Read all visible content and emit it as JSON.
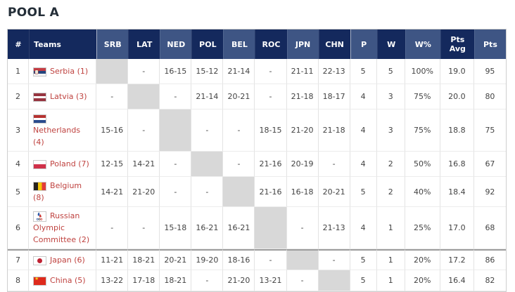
{
  "title": "POOL A",
  "colors": {
    "header_dark": "#14295d",
    "header_light": "#3e5584",
    "header_text": "#ffffff",
    "team_name_red": "#bf423f",
    "self_cell_gray": "#d8d8d8",
    "cutoff_separator": "#9c9c9c",
    "body_text": "#434343"
  },
  "table": {
    "columns": [
      {
        "key": "rank",
        "label": "#",
        "type": "rank",
        "shade": "dark"
      },
      {
        "key": "team",
        "label": "Teams",
        "type": "team",
        "shade": "dark"
      },
      {
        "key": "SRB",
        "label": "SRB",
        "type": "match",
        "shade": "light",
        "group_start": true
      },
      {
        "key": "LAT",
        "label": "LAT",
        "type": "match",
        "shade": "dark"
      },
      {
        "key": "NED",
        "label": "NED",
        "type": "match",
        "shade": "light"
      },
      {
        "key": "POL",
        "label": "POL",
        "type": "match",
        "shade": "dark"
      },
      {
        "key": "BEL",
        "label": "BEL",
        "type": "match",
        "shade": "light"
      },
      {
        "key": "ROC",
        "label": "ROC",
        "type": "match",
        "shade": "dark"
      },
      {
        "key": "JPN",
        "label": "JPN",
        "type": "match",
        "shade": "light"
      },
      {
        "key": "CHN",
        "label": "CHN",
        "type": "match",
        "shade": "dark"
      },
      {
        "key": "p",
        "label": "P",
        "type": "stat",
        "shade": "light",
        "group_start": true
      },
      {
        "key": "w",
        "label": "W",
        "type": "stat",
        "shade": "dark"
      },
      {
        "key": "w_pct",
        "label": "W%",
        "type": "stat",
        "shade": "light"
      },
      {
        "key": "pts_avg",
        "label": "Pts Avg",
        "type": "stat",
        "shade": "dark"
      },
      {
        "key": "pts",
        "label": "Pts",
        "type": "stat",
        "shade": "light"
      }
    ],
    "rows": [
      {
        "rank": "1",
        "name": "Serbia (1)",
        "flag": "serbia",
        "self": "SRB",
        "matches": {
          "LAT": "-",
          "NED": "16-15",
          "POL": "15-12",
          "BEL": "21-14",
          "ROC": "-",
          "JPN": "21-11",
          "CHN": "22-13"
        },
        "stats": {
          "p": "5",
          "w": "5",
          "w_pct": "100%",
          "pts_avg": "19.0",
          "pts": "95"
        }
      },
      {
        "rank": "2",
        "name": "Latvia (3)",
        "flag": "latvia",
        "self": "LAT",
        "matches": {
          "SRB": "-",
          "NED": "-",
          "POL": "21-14",
          "BEL": "20-21",
          "ROC": "-",
          "JPN": "21-18",
          "CHN": "18-17"
        },
        "stats": {
          "p": "4",
          "w": "3",
          "w_pct": "75%",
          "pts_avg": "20.0",
          "pts": "80"
        }
      },
      {
        "rank": "3",
        "name": "Netherlands (4)",
        "flag": "netherlands",
        "self": "NED",
        "matches": {
          "SRB": "15-16",
          "LAT": "-",
          "POL": "-",
          "BEL": "-",
          "ROC": "18-15",
          "JPN": "21-20",
          "CHN": "21-18"
        },
        "stats": {
          "p": "4",
          "w": "3",
          "w_pct": "75%",
          "pts_avg": "18.8",
          "pts": "75"
        }
      },
      {
        "rank": "4",
        "name": "Poland (7)",
        "flag": "poland",
        "self": "POL",
        "matches": {
          "SRB": "12-15",
          "LAT": "14-21",
          "NED": "-",
          "BEL": "-",
          "ROC": "21-16",
          "JPN": "20-19",
          "CHN": "-"
        },
        "stats": {
          "p": "4",
          "w": "2",
          "w_pct": "50%",
          "pts_avg": "16.8",
          "pts": "67"
        }
      },
      {
        "rank": "5",
        "name": "Belgium (8)",
        "flag": "belgium",
        "self": "BEL",
        "matches": {
          "SRB": "14-21",
          "LAT": "21-20",
          "NED": "-",
          "POL": "-",
          "ROC": "21-16",
          "JPN": "16-18",
          "CHN": "20-21"
        },
        "stats": {
          "p": "5",
          "w": "2",
          "w_pct": "40%",
          "pts_avg": "18.4",
          "pts": "92"
        }
      },
      {
        "rank": "6",
        "name": "Russian Olympic Committee (2)",
        "flag": "roc",
        "self": "ROC",
        "matches": {
          "SRB": "-",
          "LAT": "-",
          "NED": "15-18",
          "POL": "16-21",
          "BEL": "16-21",
          "JPN": "-",
          "CHN": "21-13"
        },
        "stats": {
          "p": "4",
          "w": "1",
          "w_pct": "25%",
          "pts_avg": "17.0",
          "pts": "68"
        }
      },
      {
        "rank": "7",
        "name": "Japan (6)",
        "flag": "japan",
        "self": "JPN",
        "separator_before": true,
        "matches": {
          "SRB": "11-21",
          "LAT": "18-21",
          "NED": "20-21",
          "POL": "19-20",
          "BEL": "18-16",
          "ROC": "-",
          "CHN": "-"
        },
        "stats": {
          "p": "5",
          "w": "1",
          "w_pct": "20%",
          "pts_avg": "17.2",
          "pts": "86"
        }
      },
      {
        "rank": "8",
        "name": "China (5)",
        "flag": "china",
        "self": "CHN",
        "matches": {
          "SRB": "13-22",
          "LAT": "17-18",
          "NED": "18-21",
          "POL": "-",
          "BEL": "21-20",
          "ROC": "13-21",
          "JPN": "-"
        },
        "stats": {
          "p": "5",
          "w": "1",
          "w_pct": "20%",
          "pts_avg": "16.4",
          "pts": "82"
        }
      }
    ]
  }
}
